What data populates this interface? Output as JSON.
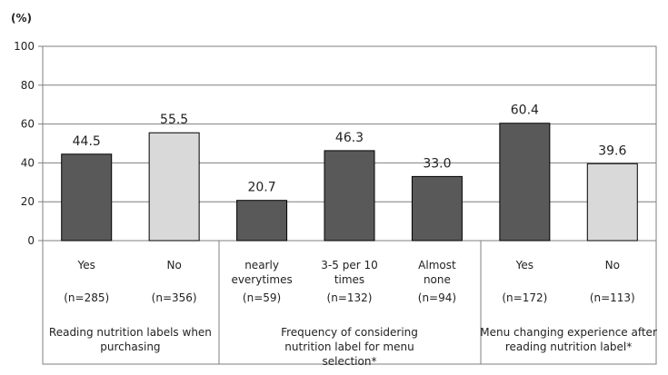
{
  "chart_data": {
    "type": "bar",
    "ylabel": "(%)",
    "ylim": [
      0,
      100
    ],
    "yticks": [
      0,
      20,
      40,
      60,
      80,
      100
    ],
    "grid": true,
    "legend": "none",
    "colors": {
      "dark": "#595959",
      "light": "#d9d9d9"
    },
    "categories": [
      {
        "label": "Yes",
        "n": "(n=285)",
        "value": 44.5,
        "value_label": "44.5",
        "color": "dark"
      },
      {
        "label": "No",
        "n": "(n=356)",
        "value": 55.5,
        "value_label": "55.5",
        "color": "light"
      },
      {
        "label": "nearly everytimes",
        "n": "(n=59)",
        "value": 20.7,
        "value_label": "20.7",
        "color": "dark"
      },
      {
        "label": "3-5 per 10 times",
        "n": "(n=132)",
        "value": 46.3,
        "value_label": "46.3",
        "color": "dark"
      },
      {
        "label": "Almost none",
        "n": "(n=94)",
        "value": 33.0,
        "value_label": "33.0",
        "color": "dark"
      },
      {
        "label": "Yes",
        "n": "(n=172)",
        "value": 60.4,
        "value_label": "60.4",
        "color": "dark"
      },
      {
        "label": "No",
        "n": "(n=113)",
        "value": 39.6,
        "value_label": "39.6",
        "color": "light"
      }
    ],
    "groups": [
      {
        "label": "Reading nutrition labels when purchasing",
        "members": [
          0,
          1
        ]
      },
      {
        "label": "Frequency of considering nutrition label for menu selection*",
        "members": [
          2,
          3,
          4
        ]
      },
      {
        "label": "Menu changing experience after reading nutrition label*",
        "members": [
          5,
          6
        ]
      }
    ]
  }
}
